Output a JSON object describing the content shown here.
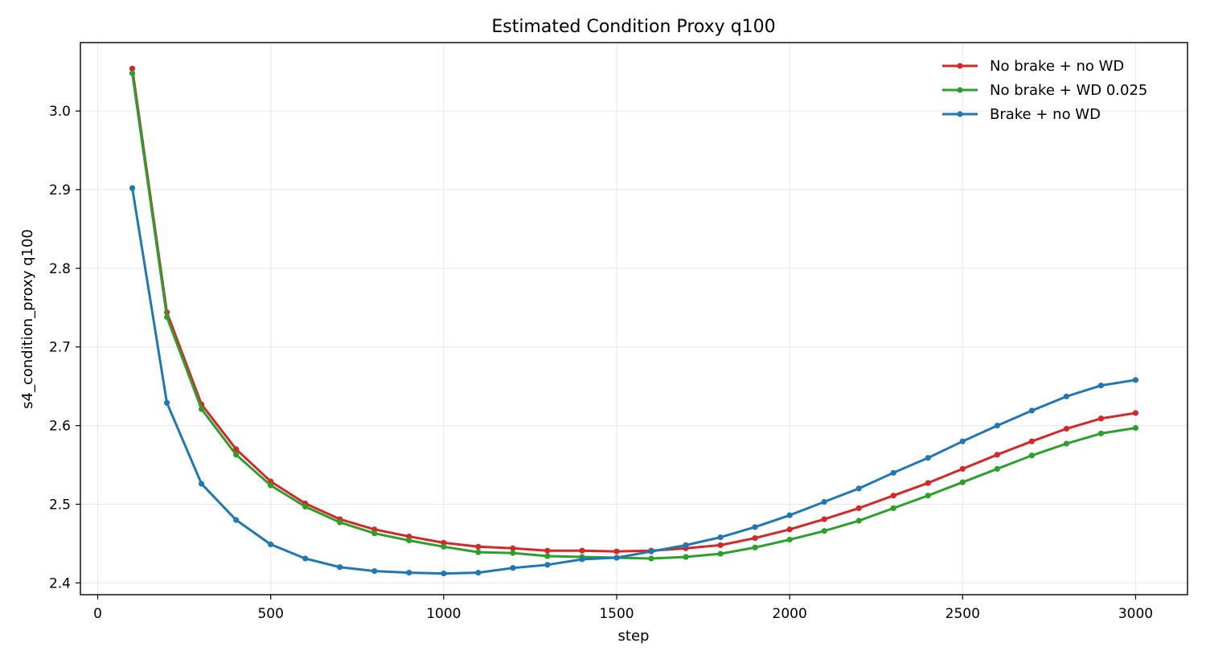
{
  "chart_data": {
    "type": "line",
    "title": "Estimated Condition Proxy q100",
    "xlabel": "step",
    "ylabel": "s4_condition_proxy q100",
    "xlim": [
      -50,
      3150
    ],
    "ylim": [
      2.385,
      3.087
    ],
    "xticks": [
      0,
      500,
      1000,
      1500,
      2000,
      2500,
      3000
    ],
    "yticks": [
      2.4,
      2.5,
      2.6,
      2.7,
      2.8,
      2.9,
      3.0
    ],
    "xtick_labels": [
      "0",
      "500",
      "1000",
      "1500",
      "2000",
      "2500",
      "3000"
    ],
    "ytick_labels": [
      "2.4",
      "2.5",
      "2.6",
      "2.7",
      "2.8",
      "2.9",
      "3.0"
    ],
    "grid": true,
    "legend_position": "top-right",
    "x": [
      100,
      200,
      300,
      400,
      500,
      600,
      700,
      800,
      900,
      1000,
      1100,
      1200,
      1300,
      1400,
      1500,
      1600,
      1700,
      1800,
      1900,
      2000,
      2100,
      2200,
      2300,
      2400,
      2500,
      2600,
      2700,
      2800,
      2900,
      3000
    ],
    "series": [
      {
        "name": "No brake + no WD",
        "color": "#d62728",
        "values": [
          3.054,
          2.744,
          2.627,
          2.57,
          2.529,
          2.501,
          2.481,
          2.468,
          2.459,
          2.451,
          2.446,
          2.444,
          2.441,
          2.441,
          2.44,
          2.441,
          2.444,
          2.448,
          2.457,
          2.468,
          2.481,
          2.495,
          2.511,
          2.527,
          2.545,
          2.563,
          2.58,
          2.596,
          2.609,
          2.616
        ]
      },
      {
        "name": "No brake + WD 0.025",
        "color": "#2ca02c",
        "values": [
          3.048,
          2.738,
          2.621,
          2.563,
          2.524,
          2.497,
          2.477,
          2.463,
          2.454,
          2.446,
          2.439,
          2.438,
          2.434,
          2.433,
          2.432,
          2.431,
          2.433,
          2.437,
          2.445,
          2.455,
          2.466,
          2.479,
          2.495,
          2.511,
          2.528,
          2.545,
          2.562,
          2.577,
          2.59,
          2.597
        ]
      },
      {
        "name": "Brake + no WD",
        "color": "#1f77b4",
        "values": [
          2.902,
          2.629,
          2.526,
          2.48,
          2.449,
          2.431,
          2.42,
          2.415,
          2.413,
          2.412,
          2.413,
          2.419,
          2.423,
          2.43,
          2.432,
          2.44,
          2.448,
          2.458,
          2.471,
          2.486,
          2.503,
          2.52,
          2.54,
          2.559,
          2.58,
          2.6,
          2.619,
          2.637,
          2.651,
          2.658
        ]
      }
    ]
  }
}
